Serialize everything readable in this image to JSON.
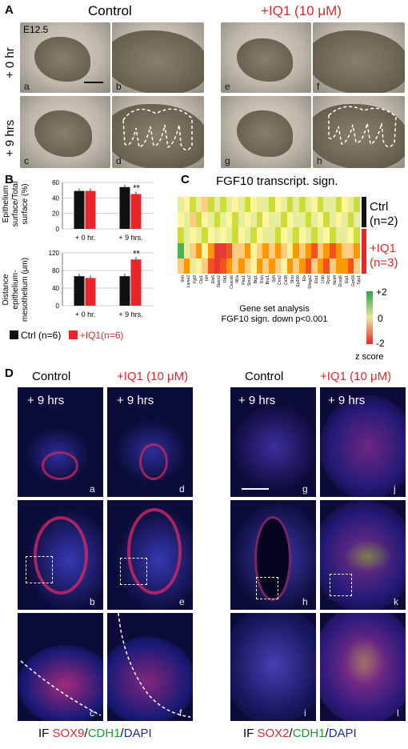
{
  "panelA": {
    "letter": "A",
    "control_title": "Control",
    "iq1_title": "+IQ1 (10 μM)",
    "row0_label": "+ 0 hr",
    "row9_label": "+ 9 hrs",
    "stage_label": "E12.5",
    "sublabels": [
      "a",
      "b",
      "c",
      "d",
      "e",
      "f",
      "g",
      "h"
    ]
  },
  "panelB": {
    "letter": "B",
    "top_ylabel_line1": "Epithelium",
    "top_ylabel_line2": "surface/Total",
    "top_ylabel_line3": "surface (%)",
    "bottom_ylabel_line1": "Distance",
    "bottom_ylabel_line2": "epithelium-",
    "bottom_ylabel_line3": "mesothelium (μm)",
    "legend_ctrl": "Ctrl (n=6)",
    "legend_iq1": "+IQ1(n=6)",
    "colors": {
      "ctrl": "#111111",
      "iq1": "#e8262a"
    }
  },
  "chart_data": [
    {
      "type": "bar",
      "categories": [
        "+ 0 hr.",
        "+ 9 hrs."
      ],
      "series": [
        {
          "name": "Ctrl (n=6)",
          "values": [
            49,
            54
          ]
        },
        {
          "name": "+IQ1(n=6)",
          "values": [
            49,
            45
          ]
        }
      ],
      "ylim": [
        0,
        60
      ],
      "yticks": [
        "0",
        "20",
        "40",
        "60"
      ],
      "annotations": [
        "**"
      ],
      "grid": true
    },
    {
      "type": "bar",
      "categories": [
        "+ 0 hr.",
        "+ 9 hrs."
      ],
      "series": [
        {
          "name": "Ctrl (n=6)",
          "values": [
            67,
            67
          ]
        },
        {
          "name": "+IQ1(n=6)",
          "values": [
            63,
            105
          ]
        }
      ],
      "ylim": [
        0,
        120
      ],
      "yticks": [
        "0",
        "40",
        "80",
        "120"
      ],
      "annotations": [
        "**"
      ],
      "grid": true
    }
  ],
  "panelC": {
    "letter": "C",
    "title": "FGF10 transcript. sign.",
    "ctrl_label": "Ctrl",
    "ctrl_n": "(n=2)",
    "iq1_label": "+IQ1",
    "iq1_n": "(n=3)",
    "genes": [
      "Shh",
      "Lama2",
      "Fgf3",
      "Ctp1",
      "Id4",
      "Ets5",
      "Stach2",
      "Rtl1",
      "Ceacs6",
      "Il6ra",
      "Pea1",
      "Spry2",
      "Btg1",
      "Rich",
      "Bnc1",
      "Sp5",
      "Cnn2",
      "Cd38",
      "Strip",
      "Ep300",
      "Etv",
      "Shbgs2",
      "Ets1",
      "Lhfp",
      "Rprc",
      "Ncd4",
      "Dusp6",
      "Ets1",
      "Gpr68",
      "Spp1"
    ],
    "caption_line1": "Gene set analysis",
    "caption_line2": "FGF10 sign. down p<0.001",
    "scale_max": "+2",
    "scale_mid": "0",
    "scale_min": "-2",
    "scale_title": "z score"
  },
  "panelD": {
    "letter": "D",
    "left_control": "Control",
    "left_iq1": "+IQ1 (10 μM)",
    "right_control": "Control",
    "right_iq1": "+IQ1 (10 μM)",
    "time": "+ 9 hrs",
    "sublabels": [
      "a",
      "b",
      "c",
      "d",
      "e",
      "f",
      "g",
      "h",
      "i",
      "j",
      "k",
      "l"
    ],
    "left_caption": {
      "if": "IF ",
      "m1": "SOX9",
      "s1": "/",
      "m2": "CDH1",
      "s2": "/",
      "m3": "DAPI"
    },
    "right_caption": {
      "if": "IF ",
      "m1": "SOX2",
      "s1": "/",
      "m2": "CDH1",
      "s2": "/",
      "m3": "DAPI"
    }
  }
}
